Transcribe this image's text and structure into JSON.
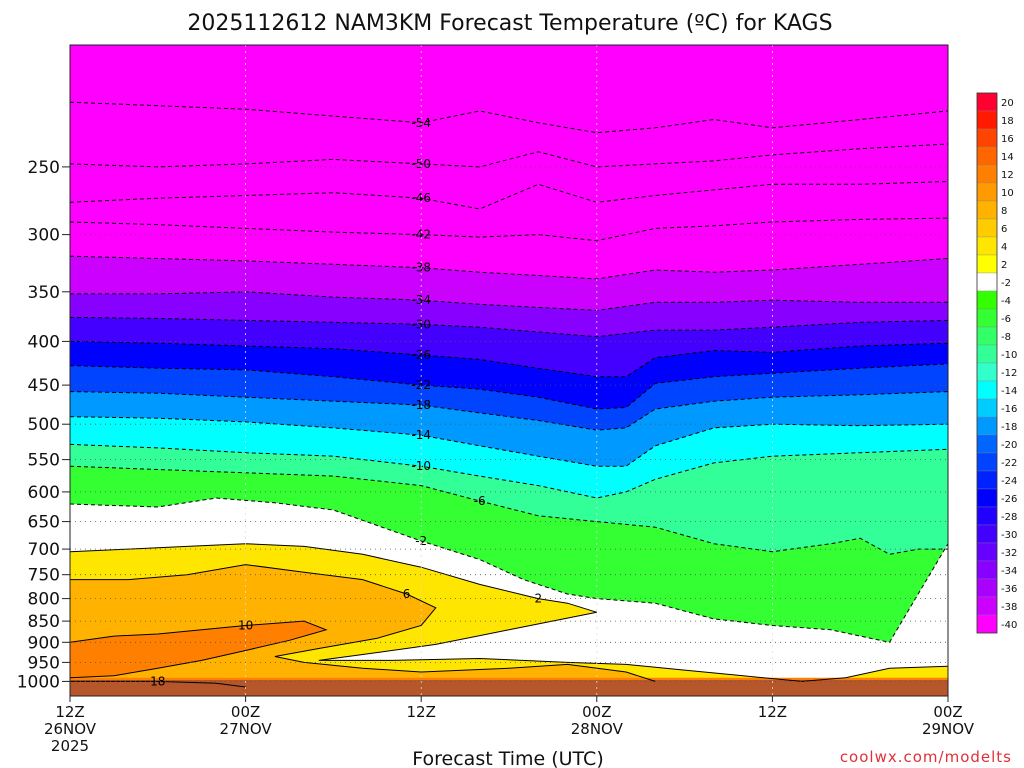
{
  "title": "2025112612 NAM3KM Forecast Temperature (ºC) for KAGS",
  "credit": "coolwx.com/modelts",
  "chart_data": {
    "type": "heatmap",
    "title": "2025112612 NAM3KM Forecast Temperature (ºC) for KAGS",
    "xlabel": "Forecast Time (UTC)",
    "ylabel": "",
    "xlim_hours": [
      0,
      60
    ],
    "ylim_hpa": [
      1040,
      180
    ],
    "x_ticks": [
      {
        "hour": 0,
        "lines": [
          "12Z",
          "26NOV",
          "2025"
        ]
      },
      {
        "hour": 12,
        "lines": [
          "00Z",
          "27NOV"
        ]
      },
      {
        "hour": 24,
        "lines": [
          "12Z"
        ]
      },
      {
        "hour": 36,
        "lines": [
          "00Z",
          "28NOV"
        ]
      },
      {
        "hour": 48,
        "lines": [
          "12Z"
        ]
      },
      {
        "hour": 60,
        "lines": [
          "00Z",
          "29NOV"
        ]
      }
    ],
    "y_ticks": [
      1000,
      950,
      900,
      850,
      800,
      750,
      700,
      650,
      600,
      550,
      500,
      450,
      400,
      350,
      300,
      250
    ],
    "colorbar": {
      "levels": [
        20,
        18,
        16,
        14,
        12,
        10,
        8,
        6,
        4,
        2,
        -2,
        -4,
        -6,
        -8,
        -10,
        -12,
        -14,
        -16,
        -18,
        -20,
        -22,
        -24,
        -26,
        -28,
        -30,
        -32,
        -34,
        -36,
        -38,
        -40
      ],
      "colors": [
        "#ff0030",
        "#ff1a00",
        "#ff4400",
        "#ff6600",
        "#ff8000",
        "#ff9a00",
        "#ffb300",
        "#ffcc00",
        "#ffe600",
        "#ffff00",
        "#ffffff",
        "#33ff00",
        "#33ff33",
        "#33ff66",
        "#33ff99",
        "#33ffcc",
        "#00ffff",
        "#00ccff",
        "#0099ff",
        "#0066ff",
        "#0044ff",
        "#0022ff",
        "#0000ff",
        "#2200ff",
        "#4400ff",
        "#6600ff",
        "#8800ff",
        "#aa00ff",
        "#cc00ff",
        "#ff00ff"
      ]
    },
    "isotherm_series": [
      {
        "value": 18,
        "points": [
          [
            0,
            1000
          ],
          [
            6,
            1000
          ],
          [
            10,
            1005
          ],
          [
            12,
            1015
          ]
        ]
      },
      {
        "value": 10,
        "points": [
          [
            0,
            900
          ],
          [
            3,
            885
          ],
          [
            6,
            880
          ],
          [
            9,
            870
          ],
          [
            12,
            860
          ],
          [
            16,
            850
          ],
          [
            17.5,
            870
          ],
          [
            15,
            895
          ],
          [
            12,
            920
          ],
          [
            9,
            945
          ],
          [
            6,
            965
          ],
          [
            3,
            985
          ],
          [
            0,
            990
          ]
        ]
      },
      {
        "value": 6,
        "points": [
          [
            0,
            760
          ],
          [
            4,
            760
          ],
          [
            8,
            750
          ],
          [
            12,
            730
          ],
          [
            16,
            745
          ],
          [
            20,
            760
          ],
          [
            23,
            790
          ],
          [
            25,
            820
          ],
          [
            24,
            860
          ],
          [
            21,
            890
          ],
          [
            17,
            915
          ],
          [
            14,
            935
          ],
          [
            16,
            950
          ],
          [
            20,
            965
          ],
          [
            24,
            975
          ],
          [
            30,
            965
          ],
          [
            34,
            955
          ],
          [
            38,
            975
          ],
          [
            40,
            1000
          ]
        ]
      },
      {
        "value": 2,
        "points": [
          [
            0,
            705
          ],
          [
            4,
            700
          ],
          [
            8,
            695
          ],
          [
            12,
            690
          ],
          [
            16,
            695
          ],
          [
            20,
            710
          ],
          [
            24,
            735
          ],
          [
            28,
            770
          ],
          [
            32,
            800
          ],
          [
            34,
            810
          ],
          [
            36,
            830
          ],
          [
            30,
            870
          ],
          [
            25,
            905
          ],
          [
            20,
            930
          ],
          [
            17,
            945
          ],
          [
            22,
            945
          ],
          [
            28,
            940
          ],
          [
            34,
            950
          ],
          [
            38,
            955
          ],
          [
            42,
            970
          ],
          [
            46,
            985
          ],
          [
            50,
            1000
          ],
          [
            53,
            990
          ],
          [
            56,
            965
          ],
          [
            60,
            960
          ]
        ]
      },
      {
        "value": -2,
        "points": [
          [
            0,
            620
          ],
          [
            6,
            625
          ],
          [
            10,
            610
          ],
          [
            14,
            618
          ],
          [
            18,
            630
          ],
          [
            24,
            685
          ],
          [
            28,
            720
          ],
          [
            31,
            760
          ],
          [
            34,
            790
          ],
          [
            36,
            800
          ],
          [
            40,
            810
          ],
          [
            44,
            845
          ],
          [
            48,
            860
          ],
          [
            52,
            870
          ],
          [
            56,
            900
          ],
          [
            60,
            690
          ]
        ]
      },
      {
        "value": -6,
        "points": [
          [
            0,
            560
          ],
          [
            6,
            565
          ],
          [
            12,
            570
          ],
          [
            18,
            575
          ],
          [
            24,
            590
          ],
          [
            28,
            615
          ],
          [
            32,
            640
          ],
          [
            36,
            650
          ],
          [
            40,
            660
          ],
          [
            44,
            690
          ],
          [
            48,
            705
          ],
          [
            52,
            690
          ],
          [
            54,
            680
          ],
          [
            56,
            710
          ],
          [
            58,
            700
          ],
          [
            60,
            700
          ]
        ]
      },
      {
        "value": -10,
        "points": [
          [
            0,
            528
          ],
          [
            6,
            533
          ],
          [
            12,
            540
          ],
          [
            18,
            545
          ],
          [
            24,
            560
          ],
          [
            28,
            575
          ],
          [
            32,
            590
          ],
          [
            36,
            610
          ],
          [
            38,
            600
          ],
          [
            40,
            580
          ],
          [
            44,
            555
          ],
          [
            48,
            545
          ],
          [
            54,
            540
          ],
          [
            60,
            535
          ]
        ]
      },
      {
        "value": -14,
        "points": [
          [
            0,
            490
          ],
          [
            6,
            492
          ],
          [
            12,
            497
          ],
          [
            18,
            505
          ],
          [
            24,
            515
          ],
          [
            28,
            530
          ],
          [
            32,
            545
          ],
          [
            36,
            560
          ],
          [
            38,
            560
          ],
          [
            40,
            530
          ],
          [
            44,
            505
          ],
          [
            48,
            500
          ],
          [
            54,
            502
          ],
          [
            60,
            500
          ]
        ]
      },
      {
        "value": -18,
        "points": [
          [
            0,
            458
          ],
          [
            6,
            460
          ],
          [
            12,
            465
          ],
          [
            18,
            470
          ],
          [
            24,
            475
          ],
          [
            28,
            485
          ],
          [
            32,
            495
          ],
          [
            36,
            508
          ],
          [
            38,
            505
          ],
          [
            40,
            480
          ],
          [
            44,
            470
          ],
          [
            48,
            465
          ],
          [
            54,
            462
          ],
          [
            60,
            458
          ]
        ]
      },
      {
        "value": -22,
        "points": [
          [
            0,
            427
          ],
          [
            6,
            430
          ],
          [
            12,
            432
          ],
          [
            18,
            440
          ],
          [
            24,
            450
          ],
          [
            28,
            455
          ],
          [
            32,
            465
          ],
          [
            36,
            480
          ],
          [
            38,
            478
          ],
          [
            40,
            448
          ],
          [
            44,
            440
          ],
          [
            48,
            436
          ],
          [
            54,
            430
          ],
          [
            60,
            425
          ]
        ]
      },
      {
        "value": -26,
        "points": [
          [
            0,
            400
          ],
          [
            6,
            402
          ],
          [
            12,
            405
          ],
          [
            18,
            408
          ],
          [
            24,
            415
          ],
          [
            28,
            420
          ],
          [
            32,
            430
          ],
          [
            36,
            440
          ],
          [
            38,
            440
          ],
          [
            40,
            418
          ],
          [
            44,
            410
          ],
          [
            48,
            412
          ],
          [
            54,
            405
          ],
          [
            60,
            402
          ]
        ]
      },
      {
        "value": -30,
        "points": [
          [
            0,
            375
          ],
          [
            6,
            376
          ],
          [
            12,
            378
          ],
          [
            18,
            380
          ],
          [
            24,
            382
          ],
          [
            28,
            385
          ],
          [
            32,
            390
          ],
          [
            36,
            395
          ],
          [
            40,
            388
          ],
          [
            44,
            388
          ],
          [
            48,
            385
          ],
          [
            54,
            380
          ],
          [
            60,
            378
          ]
        ]
      },
      {
        "value": -34,
        "points": [
          [
            0,
            352
          ],
          [
            6,
            352
          ],
          [
            12,
            350
          ],
          [
            18,
            355
          ],
          [
            24,
            358
          ],
          [
            28,
            362
          ],
          [
            32,
            365
          ],
          [
            36,
            368
          ],
          [
            40,
            360
          ],
          [
            44,
            360
          ],
          [
            48,
            358
          ],
          [
            54,
            360
          ],
          [
            60,
            360
          ]
        ]
      },
      {
        "value": -38,
        "points": [
          [
            0,
            318
          ],
          [
            6,
            320
          ],
          [
            12,
            322
          ],
          [
            18,
            325
          ],
          [
            24,
            328
          ],
          [
            28,
            332
          ],
          [
            32,
            335
          ],
          [
            36,
            338
          ],
          [
            40,
            330
          ],
          [
            44,
            332
          ],
          [
            48,
            330
          ],
          [
            54,
            325
          ],
          [
            60,
            320
          ]
        ]
      },
      {
        "value": -42,
        "points": [
          [
            0,
            290
          ],
          [
            6,
            292
          ],
          [
            12,
            295
          ],
          [
            18,
            298
          ],
          [
            24,
            300
          ],
          [
            28,
            302
          ],
          [
            32,
            300
          ],
          [
            36,
            305
          ],
          [
            40,
            295
          ],
          [
            44,
            293
          ],
          [
            48,
            290
          ],
          [
            54,
            288
          ],
          [
            60,
            287
          ]
        ]
      },
      {
        "value": -46,
        "points": [
          [
            0,
            275
          ],
          [
            6,
            272
          ],
          [
            12,
            270
          ],
          [
            18,
            268
          ],
          [
            24,
            272
          ],
          [
            28,
            280
          ],
          [
            32,
            262
          ],
          [
            36,
            275
          ],
          [
            40,
            270
          ],
          [
            44,
            266
          ],
          [
            48,
            262
          ],
          [
            54,
            262
          ],
          [
            60,
            260
          ]
        ]
      },
      {
        "value": -50,
        "points": [
          [
            0,
            248
          ],
          [
            6,
            250
          ],
          [
            12,
            248
          ],
          [
            18,
            245
          ],
          [
            24,
            248
          ],
          [
            28,
            250
          ],
          [
            32,
            240
          ],
          [
            36,
            250
          ],
          [
            40,
            248
          ],
          [
            44,
            246
          ],
          [
            48,
            242
          ],
          [
            54,
            238
          ],
          [
            60,
            235
          ]
        ]
      },
      {
        "value": -54,
        "points": [
          [
            0,
            210
          ],
          [
            6,
            212
          ],
          [
            12,
            214
          ],
          [
            18,
            218
          ],
          [
            24,
            222
          ],
          [
            28,
            215
          ],
          [
            32,
            222
          ],
          [
            36,
            228
          ],
          [
            40,
            225
          ],
          [
            44,
            220
          ],
          [
            48,
            225
          ],
          [
            54,
            220
          ],
          [
            60,
            215
          ]
        ]
      }
    ]
  }
}
